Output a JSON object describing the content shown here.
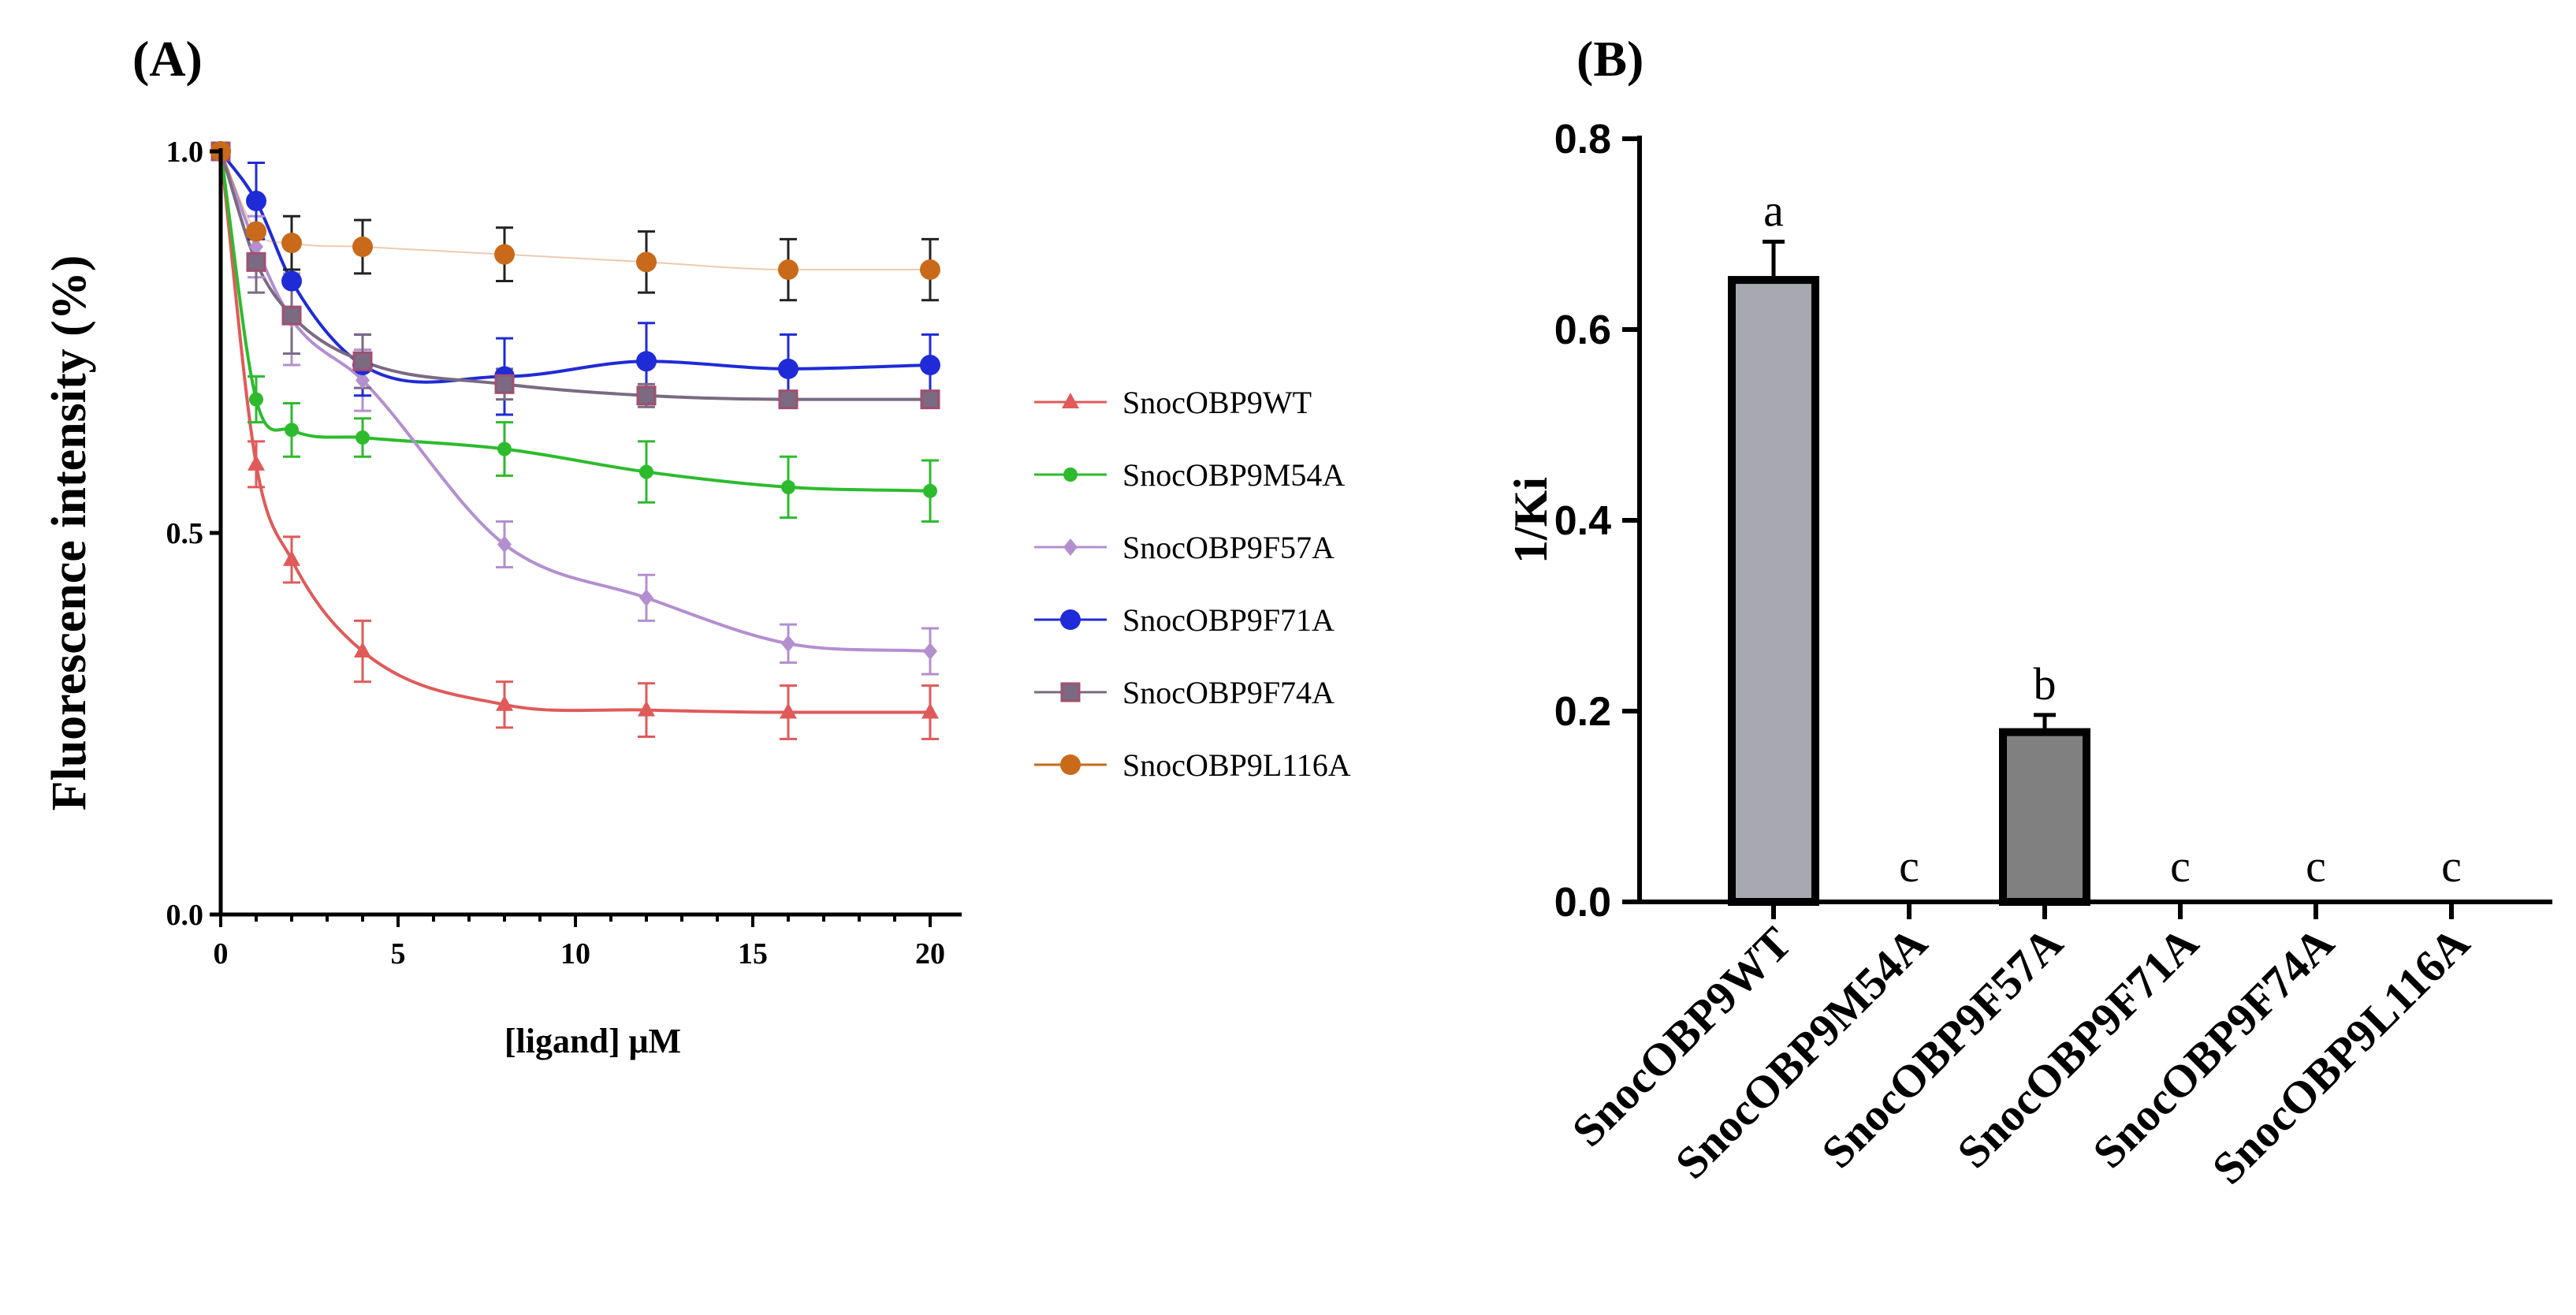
{
  "chart_data": [
    {
      "type": "line",
      "panel": "(A)",
      "xlabel": "[ligand] μM",
      "ylabel": "Fluorescence intensity (%)",
      "xlim": [
        0,
        20
      ],
      "ylim": [
        0,
        1.0
      ],
      "xticks": [
        "0",
        "5",
        "10",
        "15",
        "20"
      ],
      "yticks": [
        "0.0",
        "0.5",
        "1.0"
      ],
      "legend_position": "right",
      "x": [
        0,
        1,
        2,
        4,
        8,
        12,
        16,
        20
      ],
      "series": [
        {
          "name": "SnocOBP9WT",
          "color": "#e05a5a",
          "marker": "triangle",
          "values": [
            1.0,
            0.59,
            0.465,
            0.345,
            0.275,
            0.268,
            0.265,
            0.265
          ],
          "errors": [
            0.0,
            0.03,
            0.03,
            0.04,
            0.03,
            0.035,
            0.035,
            0.035
          ]
        },
        {
          "name": "SnocOBP9M54A",
          "color": "#2dbb2d",
          "marker": "circle",
          "values": [
            1.0,
            0.675,
            0.635,
            0.625,
            0.61,
            0.58,
            0.56,
            0.555
          ],
          "errors": [
            0.0,
            0.03,
            0.035,
            0.025,
            0.035,
            0.04,
            0.04,
            0.04
          ]
        },
        {
          "name": "SnocOBP9F57A",
          "color": "#b38fd0",
          "marker": "diamond",
          "values": [
            1.0,
            0.875,
            0.78,
            0.7,
            0.485,
            0.415,
            0.355,
            0.345
          ],
          "errors": [
            0.0,
            0.04,
            0.06,
            0.04,
            0.03,
            0.03,
            0.025,
            0.03
          ]
        },
        {
          "name": "SnocOBP9F71A",
          "color": "#1f2bd6",
          "marker": "circle",
          "values": [
            1.0,
            0.935,
            0.83,
            0.72,
            0.705,
            0.725,
            0.715,
            0.72
          ],
          "errors": [
            0.0,
            0.05,
            0.05,
            0.04,
            0.05,
            0.05,
            0.045,
            0.04
          ]
        },
        {
          "name": "SnocOBP9F74A",
          "color": "#7a6a82",
          "marker": "square",
          "values": [
            1.0,
            0.855,
            0.785,
            0.725,
            0.695,
            0.68,
            0.675,
            0.675
          ],
          "errors": [
            0.0,
            0.04,
            0.05,
            0.035,
            0.02,
            0.015,
            0.01,
            0.01
          ]
        },
        {
          "name": "SnocOBP9L116A",
          "color": "#c96a1a",
          "marker": "circle",
          "values": [
            1.0,
            0.895,
            0.88,
            0.875,
            0.865,
            0.855,
            0.845,
            0.845
          ],
          "errors": [
            0.0,
            0.0,
            0.035,
            0.035,
            0.035,
            0.04,
            0.04,
            0.04
          ]
        }
      ]
    },
    {
      "type": "bar",
      "panel": "(B)",
      "xlabel": "",
      "ylabel": "1/Ki",
      "ylim": [
        0,
        0.8
      ],
      "yticks": [
        "0.0",
        "0.2",
        "0.4",
        "0.6",
        "0.8"
      ],
      "categories": [
        "SnocOBP9WT",
        "SnocOBP9M54A",
        "SnocOBP9F57A",
        "SnocOBP9F71A",
        "SnocOBP9F74A",
        "SnocOBP9L116A"
      ],
      "values": [
        0.652,
        0,
        0.178,
        0,
        0,
        0
      ],
      "errors": [
        0.04,
        0,
        0.018,
        0,
        0,
        0
      ],
      "significance": [
        "a",
        "c",
        "b",
        "c",
        "c",
        "c"
      ],
      "bar_colors": [
        "#a8a8b0",
        "#a8a8b0",
        "#808080",
        "#808080",
        "#808080",
        "#808080"
      ]
    }
  ]
}
